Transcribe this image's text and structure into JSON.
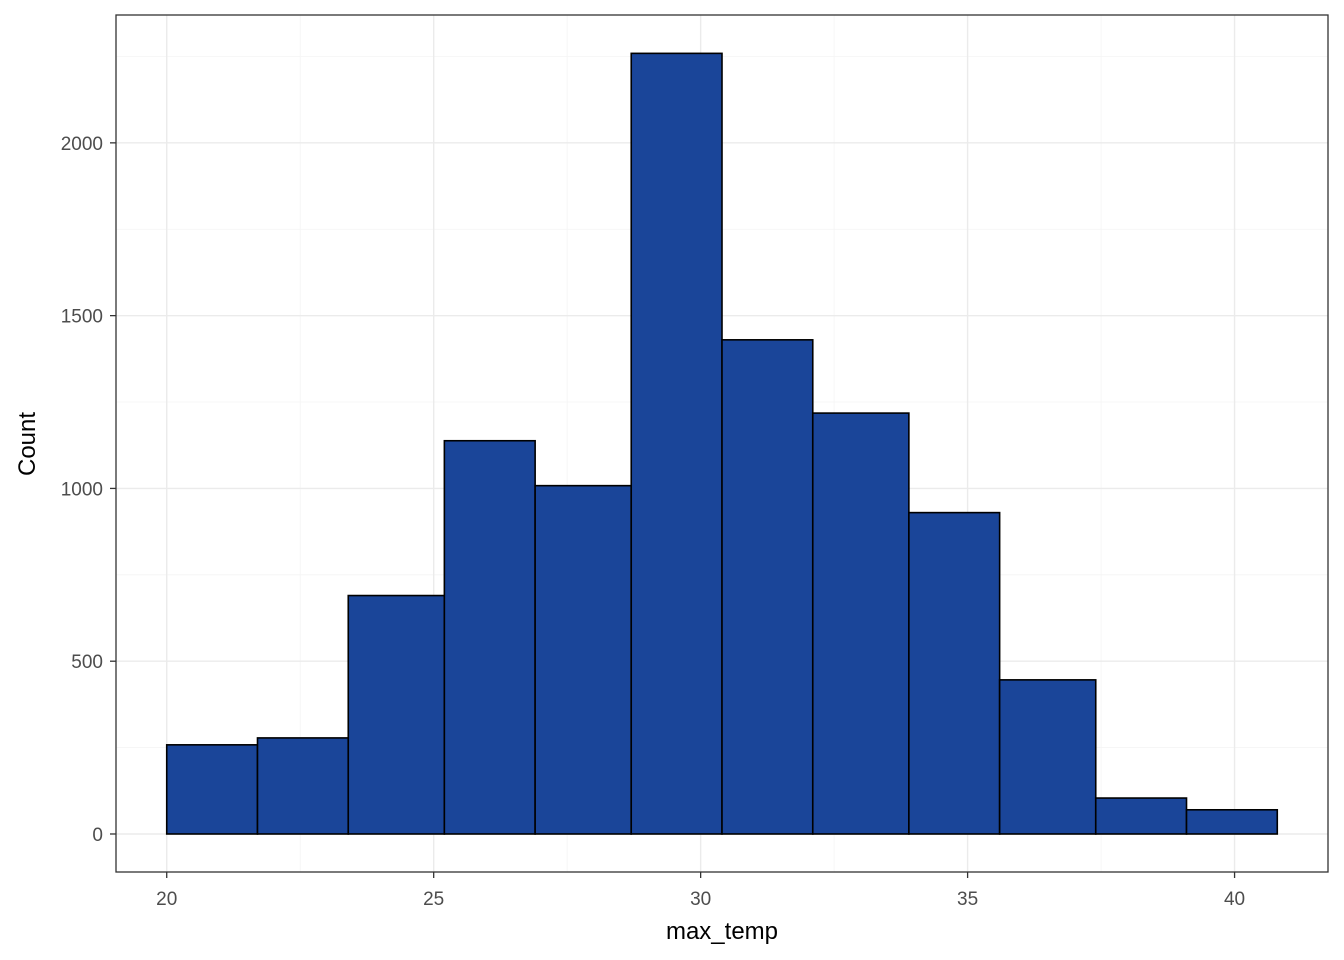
{
  "chart_data": {
    "type": "histogram",
    "title": "",
    "xlabel": "max_temp",
    "ylabel": "Count",
    "xlim": [
      19.05,
      41.75
    ],
    "ylim": [
      -110,
      2370
    ],
    "x_ticks": [
      20,
      25,
      30,
      35,
      40
    ],
    "x_tick_labels": [
      "20",
      "25",
      "30",
      "35",
      "40"
    ],
    "y_ticks": [
      0,
      500,
      1000,
      1500,
      2000
    ],
    "y_tick_labels": [
      "0",
      "500",
      "1000",
      "1500",
      "2000"
    ],
    "grid": true,
    "legend": "none",
    "bins": [
      {
        "x0": 20.0,
        "x1": 21.7,
        "count": 258
      },
      {
        "x0": 21.7,
        "x1": 23.4,
        "count": 278
      },
      {
        "x0": 23.4,
        "x1": 25.2,
        "count": 690
      },
      {
        "x0": 25.2,
        "x1": 26.9,
        "count": 1138
      },
      {
        "x0": 26.9,
        "x1": 28.7,
        "count": 1008
      },
      {
        "x0": 28.7,
        "x1": 30.4,
        "count": 2259
      },
      {
        "x0": 30.4,
        "x1": 32.1,
        "count": 1430
      },
      {
        "x0": 32.1,
        "x1": 33.9,
        "count": 1218
      },
      {
        "x0": 33.9,
        "x1": 35.6,
        "count": 930
      },
      {
        "x0": 35.6,
        "x1": 37.4,
        "count": 446
      },
      {
        "x0": 37.4,
        "x1": 39.1,
        "count": 104
      },
      {
        "x0": 39.1,
        "x1": 40.8,
        "count": 70
      }
    ],
    "colors": {
      "bar_fill": "#1a4599",
      "bar_stroke": "#000000",
      "grid_major": "#ebebeb",
      "grid_minor": "#f4f4f4",
      "panel_border": "#333333"
    }
  }
}
